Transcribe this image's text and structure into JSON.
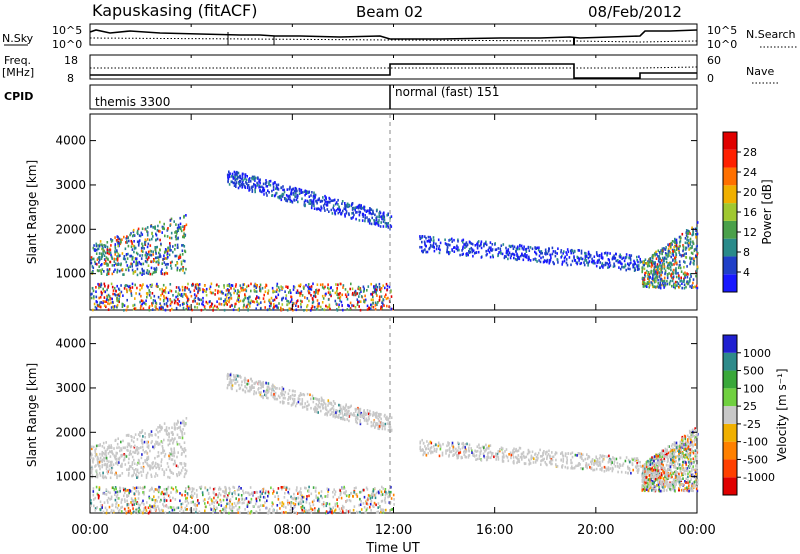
{
  "header": {
    "station": "Kapuskasing (fitACF)",
    "beam": "Beam 02",
    "date": "08/Feb/2012"
  },
  "strip_nsky": {
    "left_label": "N.Sky",
    "left_ticks": [
      "10^5",
      "10^0"
    ],
    "right_ticks": [
      "10^5",
      "10^0"
    ],
    "right_label": "N.Search"
  },
  "strip_freq": {
    "left_label_1": "Freq.",
    "left_label_2": "[MHz]",
    "left_ticks": [
      "18",
      "8"
    ],
    "right_ticks": [
      "60",
      "0"
    ],
    "right_label": "Nave"
  },
  "cpid": {
    "label": "CPID",
    "segments": [
      {
        "name": "themis 3300",
        "start_hour": 0,
        "end_hour": 12
      },
      {
        "name": "normal (fast) 151",
        "start_hour": 12,
        "end_hour": 24
      }
    ]
  },
  "chart_data": [
    {
      "type": "heatmap",
      "panel": "power",
      "ylabel": "Slant Range [km]",
      "xlabel": "Time UT",
      "x_ticks": [
        "00:00",
        "04:00",
        "08:00",
        "12:00",
        "16:00",
        "20:00",
        "00:00"
      ],
      "x_range_hours": [
        0,
        24
      ],
      "y_ticks": [
        1000,
        2000,
        3000,
        4000
      ],
      "ylim": [
        180,
        4600
      ],
      "colorbar": {
        "label": "Power [dB]",
        "ticks": [
          "4",
          "8",
          "12",
          "16",
          "20",
          "24",
          "28"
        ],
        "colors": [
          "#1818ff",
          "#2040c8",
          "#2a8a8a",
          "#4aa04a",
          "#a0c830",
          "#f0b000",
          "#ff7000",
          "#ff2000",
          "#e00000"
        ],
        "range": [
          0,
          30
        ]
      },
      "echo_regions": [
        {
          "t_start": 0.0,
          "t_end": 3.8,
          "r_start": 1000,
          "r_end": 1700,
          "r_end_at_t_end": 2400,
          "level": "strong"
        },
        {
          "t_start": 5.4,
          "t_end": 11.9,
          "r_start": 3200,
          "r_end": 2200,
          "level": "medium"
        },
        {
          "t_start": 0.0,
          "t_end": 12.0,
          "r_start": 200,
          "r_end": 800,
          "level": "mixed"
        },
        {
          "t_start": 13.0,
          "t_end": 21.8,
          "r_start": 1700,
          "r_end": 1250,
          "level": "medium"
        },
        {
          "t_start": 21.8,
          "t_end": 24.0,
          "r_start": 700,
          "r_end": 2200,
          "level": "strong"
        }
      ]
    },
    {
      "type": "heatmap",
      "panel": "velocity",
      "ylabel": "Slant Range [km]",
      "xlabel": "Time UT",
      "x_ticks": [
        "00:00",
        "04:00",
        "08:00",
        "12:00",
        "16:00",
        "20:00",
        "00:00"
      ],
      "x_range_hours": [
        0,
        24
      ],
      "y_ticks": [
        1000,
        2000,
        3000,
        4000
      ],
      "ylim": [
        180,
        4600
      ],
      "colorbar": {
        "label": "Velocity [m s⁻¹]",
        "ticks": [
          "1000",
          "500",
          "100",
          "25",
          "-25",
          "-100",
          "-500",
          "-1000"
        ],
        "colors": [
          "#2020d0",
          "#2e8a8a",
          "#3aa83a",
          "#70d040",
          "#c8c8c8",
          "#f0b000",
          "#ff8000",
          "#ff4000",
          "#e00000"
        ],
        "range": [
          -1000,
          1000
        ]
      },
      "echo_regions": [
        {
          "t_start": 0.0,
          "t_end": 3.8,
          "r_start": 1000,
          "r_end": 1700,
          "r_end_at_t_end": 2400,
          "level": "ground"
        },
        {
          "t_start": 5.4,
          "t_end": 11.9,
          "r_start": 3200,
          "r_end": 2200,
          "level": "ground"
        },
        {
          "t_start": 0.0,
          "t_end": 12.0,
          "r_start": 200,
          "r_end": 800,
          "level": "mixed"
        },
        {
          "t_start": 13.0,
          "t_end": 21.8,
          "r_start": 1700,
          "r_end": 1250,
          "level": "ground"
        },
        {
          "t_start": 21.8,
          "t_end": 24.0,
          "r_start": 700,
          "r_end": 2200,
          "level": "mixed"
        }
      ]
    }
  ]
}
